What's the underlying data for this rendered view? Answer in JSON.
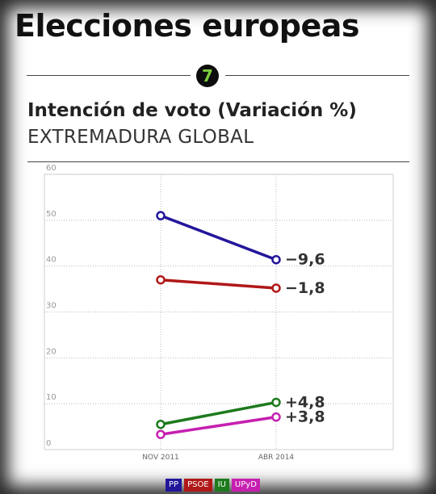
{
  "header": {
    "title": "Elecciones europeas",
    "badge_number": "7"
  },
  "chart_data": {
    "type": "line",
    "title": "Intención de voto (Variación %)",
    "subtitle": "EXTREMADURA GLOBAL",
    "categories": [
      "NOV 2011",
      "ABR 2014"
    ],
    "ylim": [
      0,
      60
    ],
    "yticks": [
      0,
      10,
      20,
      30,
      40,
      50,
      60
    ],
    "grid": true,
    "legend_position": "bottom-center",
    "series": [
      {
        "name": "PP",
        "values": [
          51.0,
          41.4
        ],
        "change_label": "−9,6",
        "color": "#22169b"
      },
      {
        "name": "PSOE",
        "values": [
          37.0,
          35.2
        ],
        "change_label": "−1,8",
        "color": "#b01818"
      },
      {
        "name": "IU",
        "values": [
          5.5,
          10.3
        ],
        "change_label": "+4,8",
        "color": "#1d7a1d"
      },
      {
        "name": "UPyD",
        "values": [
          3.3,
          7.1
        ],
        "change_label": "+3,8",
        "color": "#c61fb0"
      }
    ]
  }
}
